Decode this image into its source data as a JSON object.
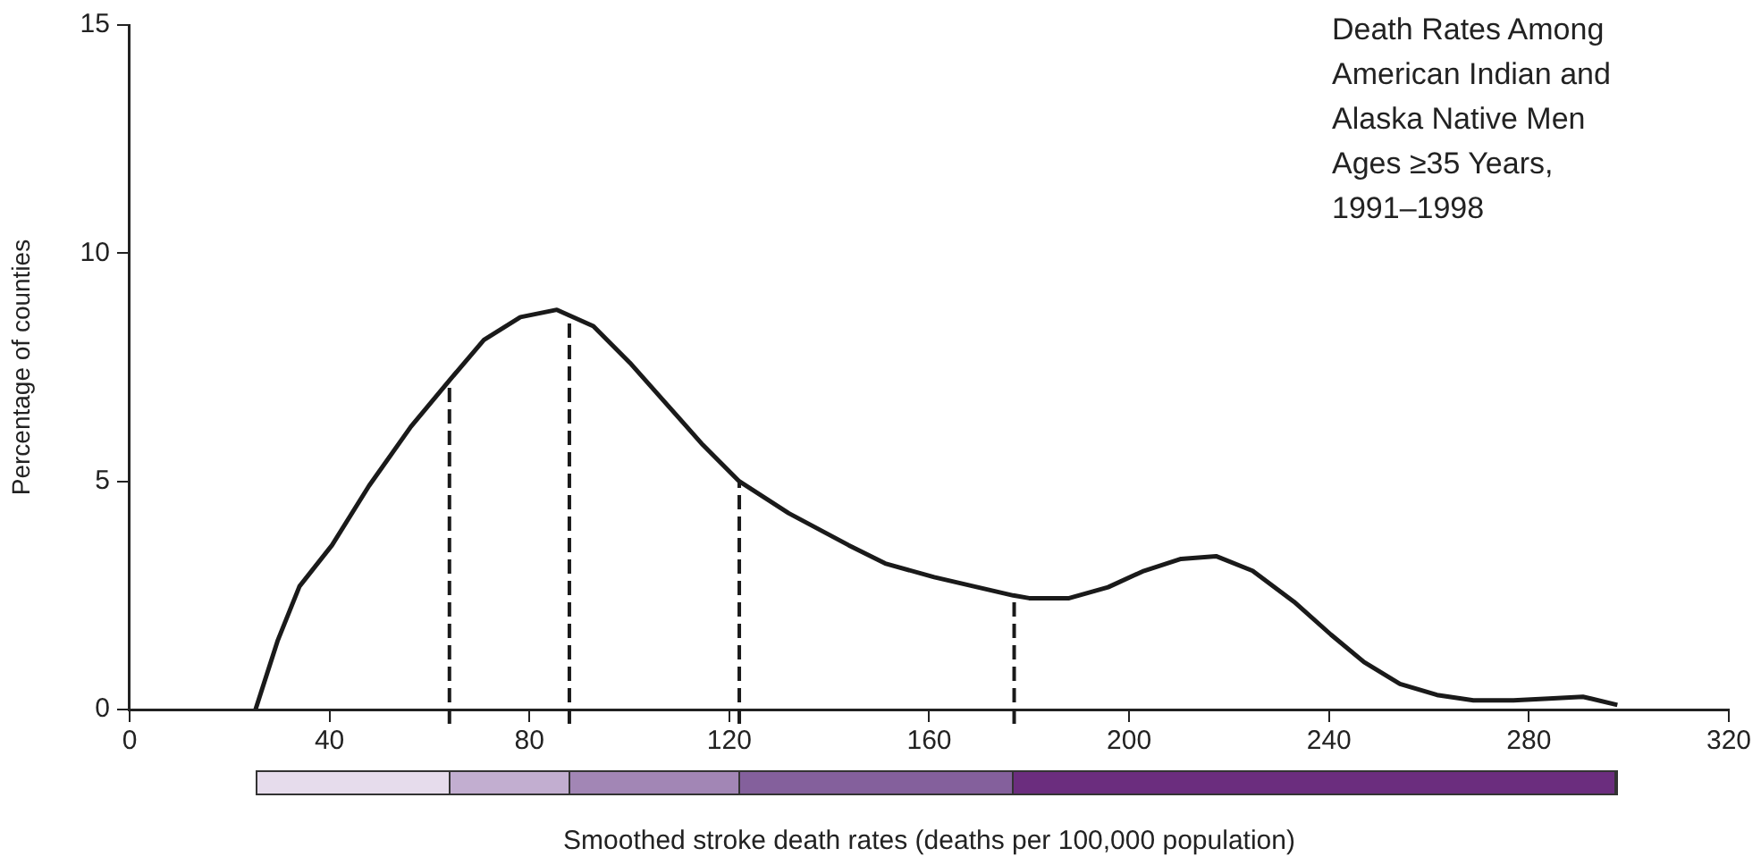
{
  "chart_data": {
    "type": "line",
    "title": "Death Rates Among\nAmerican Indian and\nAlaska Native Men\nAges ≥35 Years,\n1991–1998",
    "xlabel": "Smoothed stroke death rates (deaths per 100,000 population)",
    "ylabel": "Percentage of counties",
    "series": [
      {
        "color": "#1a1a1a",
        "x": [
          25.2,
          29.6,
          34,
          40.5,
          47.9,
          56.3,
          63.9,
          70.9,
          78.2,
          85.5,
          92.8,
          100.1,
          107.4,
          114.7,
          122,
          131.9,
          143.9,
          151.2,
          161,
          176.8,
          180,
          188,
          195.8,
          203,
          210.4,
          217.4,
          224.7,
          233,
          240.4,
          247,
          254.2,
          261.6,
          268.9,
          276.9,
          284,
          290.8,
          297.7
        ],
        "values": [
          0,
          1.5,
          2.7,
          3.6,
          4.9,
          6.2,
          7.2,
          8.1,
          8.6,
          8.76,
          8.4,
          7.6,
          6.7,
          5.8,
          5.0,
          4.3,
          3.6,
          3.2,
          2.9,
          2.5,
          2.44,
          2.44,
          2.68,
          3.04,
          3.3,
          3.36,
          3.04,
          2.36,
          1.64,
          1.04,
          0.56,
          0.32,
          0.2,
          0.2,
          0.24,
          0.28,
          0.1
        ]
      }
    ],
    "xlim": [
      0,
      320
    ],
    "xticks": [
      0,
      40,
      80,
      120,
      160,
      200,
      240,
      280,
      320
    ],
    "ylim": [
      0,
      15
    ],
    "yticks": [
      0,
      5,
      10,
      15
    ],
    "marker": "none",
    "line_style": "solid",
    "ref_lines": [
      {
        "axis": "x",
        "value": 64,
        "line_style": "dashed",
        "color": "#1a1a1a"
      },
      {
        "axis": "x",
        "value": 88,
        "line_style": "dashed",
        "color": "#1a1a1a"
      },
      {
        "axis": "x",
        "value": 122,
        "line_style": "dashed",
        "color": "#1a1a1a"
      },
      {
        "axis": "x",
        "value": 177,
        "line_style": "dashed",
        "color": "#1a1a1a"
      }
    ]
  }
}
